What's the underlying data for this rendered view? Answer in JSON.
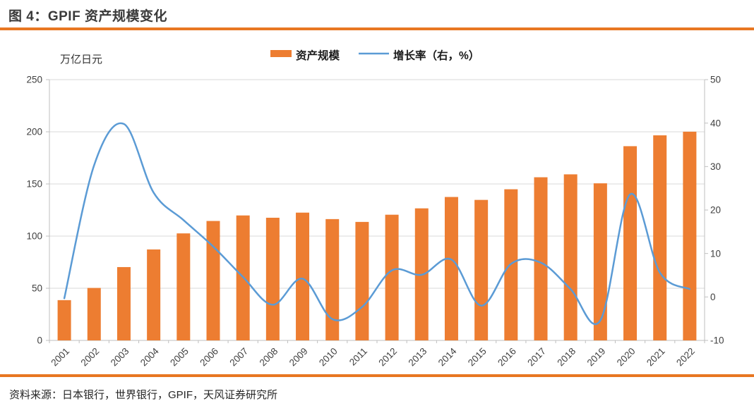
{
  "figure": {
    "title": "图 4：GPIF 资产规模变化",
    "source": "资料来源：日本银行，世界银行，GPIF，天风证券研究所"
  },
  "legend": {
    "items": [
      {
        "label": "资产规模",
        "swatch": "bar",
        "color": "#ED7D31"
      },
      {
        "label": "增长率（右，%）",
        "swatch": "line",
        "color": "#5B9BD5"
      }
    ]
  },
  "colors": {
    "bar": "#ED7D31",
    "line": "#5B9BD5",
    "rule": "#E87722",
    "grid": "#D9D9D9",
    "axis": "#BFBFBF",
    "tick_label": "#404040"
  },
  "chart_data": {
    "type": "bar",
    "subtype": "bar+line combo, dual axis",
    "unit_label": "万亿日元",
    "categories": [
      "2001",
      "2002",
      "2003",
      "2004",
      "2005",
      "2006",
      "2007",
      "2008",
      "2009",
      "2010",
      "2011",
      "2012",
      "2013",
      "2014",
      "2015",
      "2016",
      "2017",
      "2018",
      "2019",
      "2020",
      "2021",
      "2022"
    ],
    "series": [
      {
        "name": "资产规模",
        "type": "bar",
        "axis": "left",
        "color": "#ED7D31",
        "values": [
          38.6,
          50.3,
          70.3,
          87.2,
          102.6,
          114.5,
          119.8,
          117.6,
          122.5,
          116.3,
          113.6,
          120.5,
          126.6,
          137.5,
          134.7,
          144.9,
          156.4,
          159.2,
          150.6,
          186.2,
          196.6,
          200.1
        ]
      },
      {
        "name": "增长率（右，%）",
        "type": "line",
        "axis": "right",
        "color": "#5B9BD5",
        "smooth": true,
        "values": [
          -0.3,
          30.3,
          39.8,
          24.0,
          17.7,
          11.6,
          4.6,
          -1.8,
          4.2,
          -5.1,
          -2.3,
          6.1,
          5.1,
          8.6,
          -2.0,
          7.6,
          7.9,
          1.8,
          -5.4,
          23.6,
          5.6,
          1.8
        ]
      }
    ],
    "left_axis": {
      "label": "万亿日元",
      "min": 0,
      "max": 250,
      "ticks": [
        0,
        50,
        100,
        150,
        200,
        250
      ]
    },
    "right_axis": {
      "label": "增长率（右，%）",
      "min": -10,
      "max": 50,
      "ticks": [
        -10,
        0,
        10,
        20,
        30,
        40,
        50
      ]
    },
    "grid": "horizontal only",
    "legend_position": "top-center"
  }
}
